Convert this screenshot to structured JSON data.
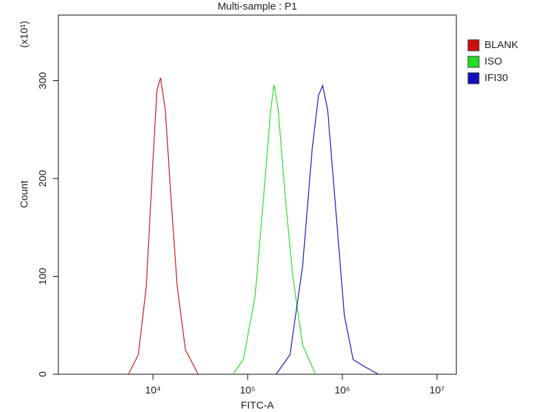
{
  "chart_data": {
    "type": "line",
    "title": "Multi-sample : P1",
    "x_label": "FITC-A",
    "y_label": "Count",
    "y_multiplier": "(x10¹)",
    "x_scale": "log",
    "xlim": [
      1000,
      16000000
    ],
    "xticks": [
      {
        "value": 10000,
        "label": "10⁴"
      },
      {
        "value": 100000,
        "label": "10⁵"
      },
      {
        "value": 1000000,
        "label": "10⁶"
      },
      {
        "value": 10000000,
        "label": "10⁷"
      }
    ],
    "ylim": [
      0,
      367
    ],
    "yticks": [
      0,
      100,
      200,
      300
    ],
    "grid": false,
    "legend": "right",
    "series": [
      {
        "name": "BLANK",
        "color": "#d01010",
        "x": [
          5500,
          7000,
          8500,
          10000,
          11000,
          12000,
          13500,
          15500,
          18000,
          22000,
          30000
        ],
        "values": [
          0,
          20,
          90,
          220,
          290,
          303,
          270,
          180,
          90,
          25,
          0
        ]
      },
      {
        "name": "ISO",
        "color": "#20e020",
        "x": [
          70000,
          90000,
          120000,
          150000,
          175000,
          190000,
          210000,
          250000,
          300000,
          380000,
          520000
        ],
        "values": [
          0,
          15,
          80,
          190,
          270,
          296,
          270,
          180,
          100,
          30,
          0
        ]
      },
      {
        "name": "IFI30",
        "color": "#1010c0",
        "x": [
          200000,
          280000,
          380000,
          480000,
          560000,
          620000,
          700000,
          850000,
          1050000,
          1300000,
          1700000,
          2400000
        ],
        "values": [
          0,
          20,
          110,
          230,
          285,
          295,
          270,
          170,
          60,
          15,
          8,
          0
        ]
      }
    ]
  }
}
